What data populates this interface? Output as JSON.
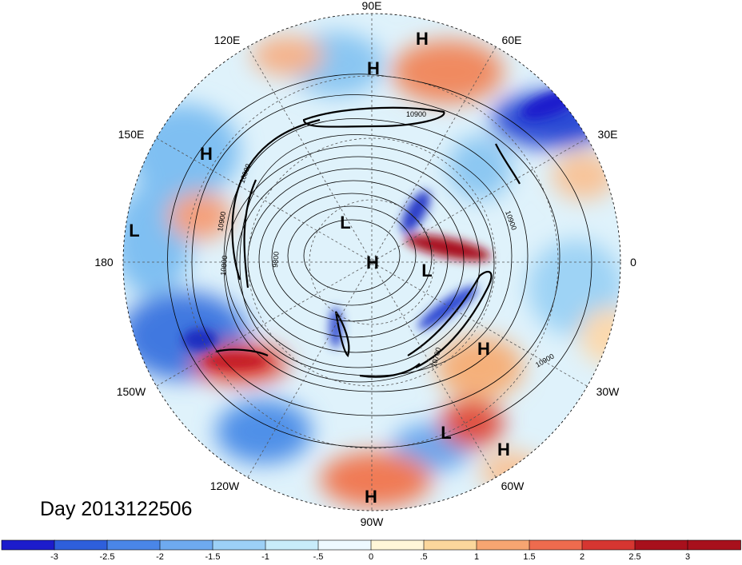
{
  "map": {
    "date_label": "Day 2013122506",
    "longitude_labels": {
      "lon_90e": "90E",
      "lon_120e": "120E",
      "lon_60e": "60E",
      "lon_150e": "150E",
      "lon_30e": "30E",
      "lon_180": "180",
      "lon_0": "0",
      "lon_150w": "150W",
      "lon_30w": "30W",
      "lon_120w": "120W",
      "lon_60w": "60W",
      "lon_90w": "90W"
    },
    "pressure_centers": [
      {
        "id": "h1",
        "type": "H"
      },
      {
        "id": "h2",
        "type": "H"
      },
      {
        "id": "h3",
        "type": "H"
      },
      {
        "id": "h4",
        "type": "H"
      },
      {
        "id": "h5",
        "type": "H"
      },
      {
        "id": "h6",
        "type": "H"
      },
      {
        "id": "h7",
        "type": "H"
      },
      {
        "id": "l1",
        "type": "L"
      },
      {
        "id": "l2",
        "type": "L"
      },
      {
        "id": "l3",
        "type": "L"
      },
      {
        "id": "l4",
        "type": "L"
      }
    ],
    "contour_labels": [
      "10900",
      "10800",
      "10900",
      "9800",
      "10900",
      "10700",
      "10900",
      "10800"
    ]
  },
  "colorbar": {
    "labels": [
      "-3",
      "-2.5",
      "-2",
      "-1.5",
      "-1",
      "-.5",
      "0",
      ".5",
      "1",
      "1.5",
      "2",
      "2.5",
      "3"
    ],
    "colors": [
      "#1c1ccc",
      "#2e5fdc",
      "#4a86e8",
      "#6eaaf0",
      "#9cd0f6",
      "#c8ecfa",
      "#eefaff",
      "#fff6d8",
      "#fbd79c",
      "#f7a571",
      "#ee6b4e",
      "#d63631",
      "#a8101c"
    ]
  }
}
